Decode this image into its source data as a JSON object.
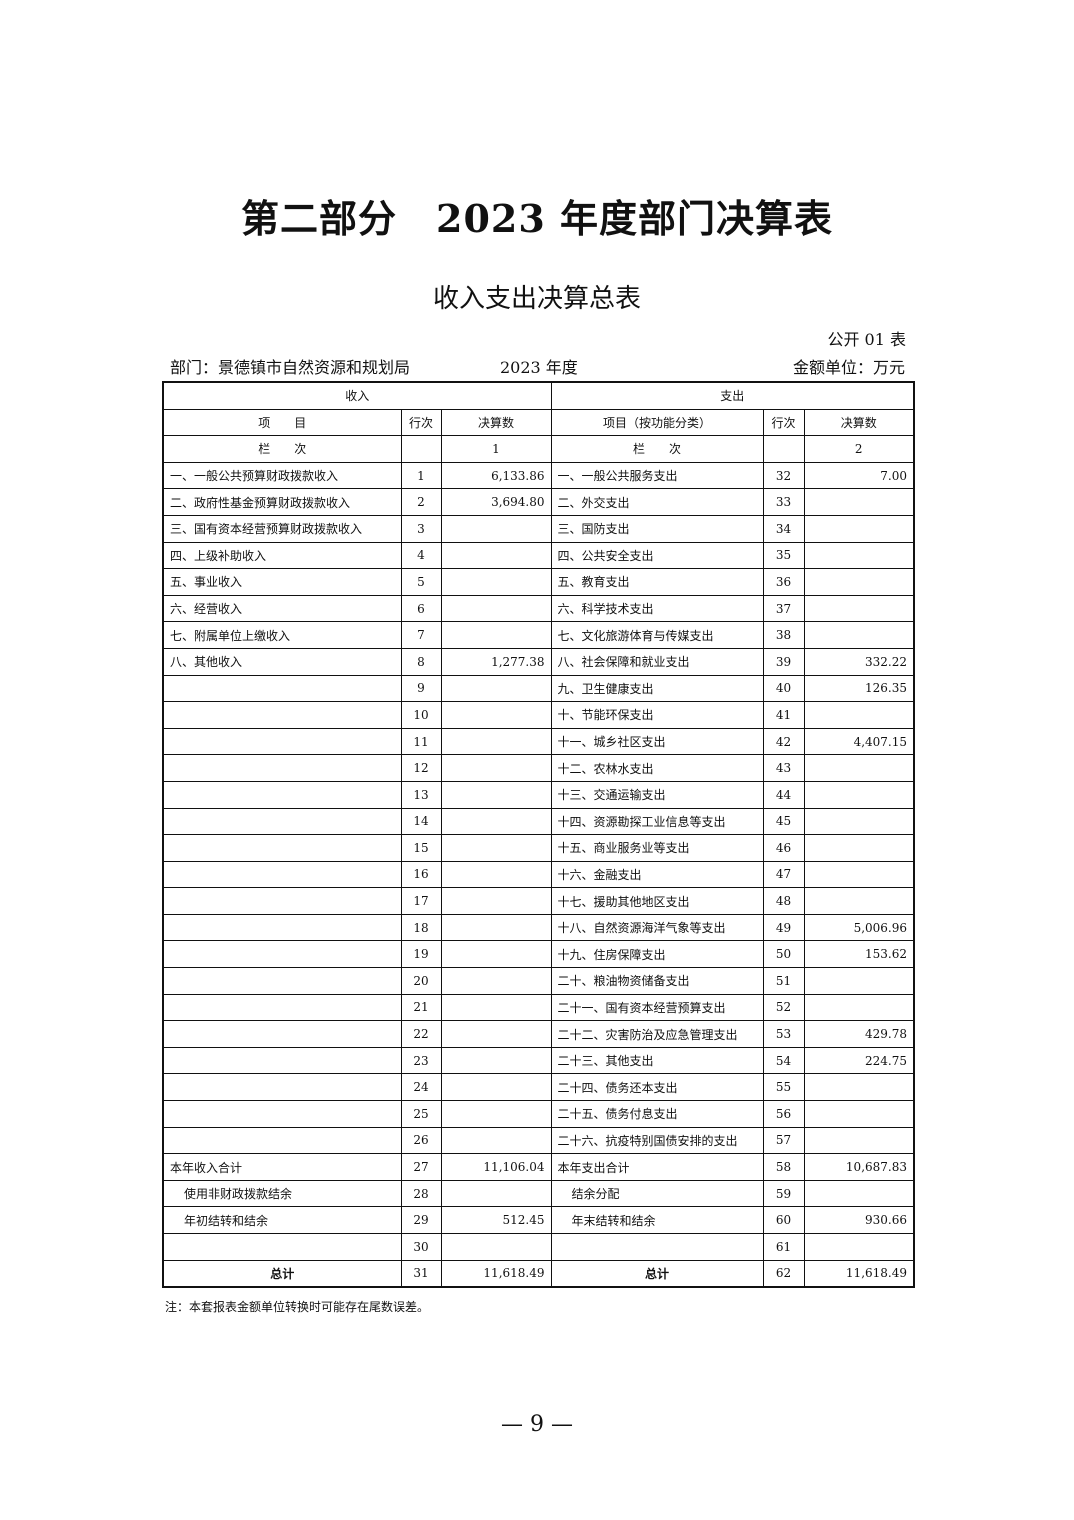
{
  "title": "第二部分　2023 年度部门决算表",
  "subtitle": "收入支出决算总表",
  "table_no": "公开 01 表",
  "department": "部门：景德镇市自然资源和规划局",
  "year": "2023 年度",
  "unit": "金额单位：万元",
  "header": {
    "income": "收入",
    "expense": "支出",
    "item": "项　　目",
    "row_no": "行次",
    "amount": "决算数",
    "item_func": "项目（按功能分类）",
    "column": "栏　　次",
    "col1": "1",
    "col2": "2"
  },
  "rows": [
    [
      "一、一般公共预算财政拨款收入",
      "1",
      "6,133.86",
      "一、一般公共服务支出",
      "32",
      "7.00"
    ],
    [
      "二、政府性基金预算财政拨款收入",
      "2",
      "3,694.80",
      "二、外交支出",
      "33",
      ""
    ],
    [
      "三、国有资本经营预算财政拨款收入",
      "3",
      "",
      "三、国防支出",
      "34",
      ""
    ],
    [
      "四、上级补助收入",
      "4",
      "",
      "四、公共安全支出",
      "35",
      ""
    ],
    [
      "五、事业收入",
      "5",
      "",
      "五、教育支出",
      "36",
      ""
    ],
    [
      "六、经营收入",
      "6",
      "",
      "六、科学技术支出",
      "37",
      ""
    ],
    [
      "七、附属单位上缴收入",
      "7",
      "",
      "七、文化旅游体育与传媒支出",
      "38",
      ""
    ],
    [
      "八、其他收入",
      "8",
      "1,277.38",
      "八、社会保障和就业支出",
      "39",
      "332.22"
    ],
    [
      "",
      "9",
      "",
      "九、卫生健康支出",
      "40",
      "126.35"
    ],
    [
      "",
      "10",
      "",
      "十、节能环保支出",
      "41",
      ""
    ],
    [
      "",
      "11",
      "",
      "十一、城乡社区支出",
      "42",
      "4,407.15"
    ],
    [
      "",
      "12",
      "",
      "十二、农林水支出",
      "43",
      ""
    ],
    [
      "",
      "13",
      "",
      "十三、交通运输支出",
      "44",
      ""
    ],
    [
      "",
      "14",
      "",
      "十四、资源勘探工业信息等支出",
      "45",
      ""
    ],
    [
      "",
      "15",
      "",
      "十五、商业服务业等支出",
      "46",
      ""
    ],
    [
      "",
      "16",
      "",
      "十六、金融支出",
      "47",
      ""
    ],
    [
      "",
      "17",
      "",
      "十七、援助其他地区支出",
      "48",
      ""
    ],
    [
      "",
      "18",
      "",
      "十八、自然资源海洋气象等支出",
      "49",
      "5,006.96"
    ],
    [
      "",
      "19",
      "",
      "十九、住房保障支出",
      "50",
      "153.62"
    ],
    [
      "",
      "20",
      "",
      "二十、粮油物资储备支出",
      "51",
      ""
    ],
    [
      "",
      "21",
      "",
      "二十一、国有资本经营预算支出",
      "52",
      ""
    ],
    [
      "",
      "22",
      "",
      "二十二、灾害防治及应急管理支出",
      "53",
      "429.78"
    ],
    [
      "",
      "23",
      "",
      "二十三、其他支出",
      "54",
      "224.75"
    ],
    [
      "",
      "24",
      "",
      "二十四、债务还本支出",
      "55",
      ""
    ],
    [
      "",
      "25",
      "",
      "二十五、债务付息支出",
      "56",
      ""
    ],
    [
      "",
      "26",
      "",
      "二十六、抗疫特别国债安排的支出",
      "57",
      ""
    ],
    [
      "本年收入合计",
      "27",
      "11,106.04",
      "本年支出合计",
      "58",
      "10,687.83"
    ],
    [
      "使用非财政拨款结余",
      "28",
      "",
      "结余分配",
      "59",
      ""
    ],
    [
      "年初结转和结余",
      "29",
      "512.45",
      "年末结转和结余",
      "60",
      "930.66"
    ],
    [
      "",
      "30",
      "",
      "",
      "61",
      ""
    ],
    [
      "总计",
      "31",
      "11,618.49",
      "总计",
      "62",
      "11,618.49"
    ]
  ],
  "note": "注：本套报表金额单位转换时可能存在尾数误差。",
  "page_number": "— 9 —"
}
